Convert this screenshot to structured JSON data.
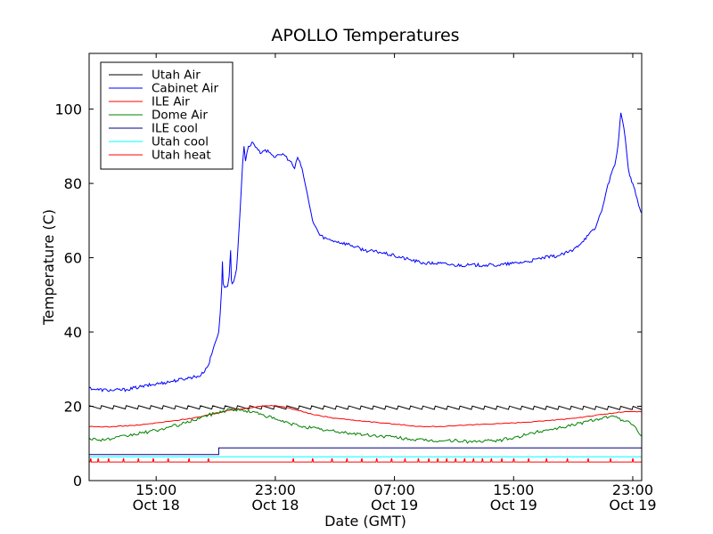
{
  "chart_data": {
    "type": "line",
    "title": "APOLLO Temperatures",
    "xlabel": "Date (GMT)",
    "ylabel": "Temperature (C)",
    "x_unit": "hours since Oct 18 00:00 GMT",
    "xlim": [
      10.5,
      47.6
    ],
    "ylim": [
      0,
      115
    ],
    "yticks": [
      0,
      20,
      40,
      60,
      80,
      100
    ],
    "xticks": [
      {
        "x": 15,
        "line1": "15:00",
        "line2": "Oct 18"
      },
      {
        "x": 23,
        "line1": "23:00",
        "line2": "Oct 18"
      },
      {
        "x": 31,
        "line1": "07:00",
        "line2": "Oct 19"
      },
      {
        "x": 39,
        "line1": "15:00",
        "line2": "Oct 19"
      },
      {
        "x": 47,
        "line1": "23:00",
        "line2": "Oct 19"
      }
    ],
    "legend_position": "top-left",
    "series": [
      {
        "name": "Utah Air",
        "color": "#000000",
        "x": [
          10.5,
          47.6
        ],
        "y": [
          19.8,
          19.6
        ],
        "sawtooth": {
          "period": 0.83,
          "amplitude": 1.0
        }
      },
      {
        "name": "Cabinet Air",
        "color": "#0000ff",
        "x": [
          10.5,
          11.0,
          12.0,
          13.0,
          14.0,
          15.0,
          16.0,
          17.0,
          18.0,
          18.5,
          18.8,
          19.0,
          19.2,
          19.3,
          19.4,
          19.45,
          19.5,
          19.6,
          19.8,
          19.9,
          20.0,
          20.05,
          20.1,
          20.2,
          20.4,
          20.6,
          20.8,
          20.9,
          21.0,
          21.2,
          21.5,
          22.0,
          22.5,
          23.0,
          23.5,
          24.0,
          24.3,
          24.5,
          24.8,
          25.0,
          25.3,
          25.5,
          26.0,
          26.5,
          27.0,
          28.0,
          29.0,
          30.0,
          31.0,
          32.0,
          33.0,
          34.0,
          35.0,
          36.0,
          37.0,
          38.0,
          39.0,
          40.0,
          41.0,
          42.0,
          43.0,
          44.0,
          44.5,
          45.0,
          45.5,
          45.8,
          46.0,
          46.2,
          46.4,
          46.5,
          46.6,
          46.7,
          46.8,
          47.0,
          47.2,
          47.4,
          47.6
        ],
        "y": [
          25.0,
          24.5,
          24.3,
          24.5,
          25.3,
          26.0,
          26.7,
          27.5,
          28.3,
          31.0,
          35.0,
          37.5,
          40.0,
          45.0,
          52.0,
          59.0,
          53.0,
          52.0,
          52.3,
          55.0,
          62.0,
          54.0,
          53.0,
          53.5,
          57.0,
          70.0,
          85.0,
          90.0,
          86.0,
          90.0,
          91.0,
          88.0,
          89.0,
          87.0,
          88.0,
          86.0,
          84.0,
          87.0,
          84.0,
          80.0,
          74.0,
          70.0,
          66.0,
          65.0,
          64.5,
          63.5,
          62.0,
          61.5,
          60.5,
          59.5,
          58.5,
          58.5,
          58.0,
          58.0,
          58.0,
          58.0,
          58.5,
          59.0,
          60.0,
          60.5,
          62.0,
          66.0,
          68.0,
          74.0,
          82.0,
          85.0,
          90.0,
          99.0,
          95.0,
          92.0,
          88.0,
          84.0,
          82.0,
          80.0,
          77.0,
          74.0,
          72.0
        ]
      },
      {
        "name": "ILE Air",
        "color": "#ff0000",
        "x": [
          10.5,
          12.0,
          14.0,
          16.0,
          18.0,
          20.0,
          22.0,
          23.0,
          24.0,
          25.5,
          27.0,
          29.0,
          31.0,
          33.0,
          35.0,
          37.0,
          39.0,
          41.0,
          43.0,
          45.0,
          46.5,
          47.6
        ],
        "y": [
          14.5,
          14.5,
          15.0,
          16.0,
          17.2,
          19.0,
          20.0,
          20.2,
          19.5,
          17.8,
          16.8,
          16.0,
          15.2,
          14.5,
          14.7,
          15.2,
          15.5,
          16.0,
          16.8,
          17.8,
          18.6,
          18.5
        ]
      },
      {
        "name": "Dome Air",
        "color": "#008000",
        "x": [
          10.5,
          11.0,
          12.0,
          13.0,
          14.0,
          15.0,
          16.0,
          17.0,
          18.0,
          19.0,
          20.0,
          21.0,
          22.0,
          23.0,
          24.0,
          25.0,
          26.0,
          27.0,
          28.0,
          29.0,
          30.0,
          31.0,
          32.0,
          33.0,
          34.0,
          35.0,
          36.0,
          37.0,
          38.0,
          39.0,
          40.0,
          41.0,
          42.0,
          43.0,
          44.0,
          44.5,
          45.0,
          45.5,
          46.0,
          46.5,
          47.0,
          47.3,
          47.6
        ],
        "y": [
          11.5,
          11.0,
          11.2,
          12.0,
          12.8,
          13.5,
          14.5,
          15.5,
          17.0,
          18.2,
          19.2,
          18.8,
          18.0,
          16.5,
          15.3,
          14.5,
          13.8,
          13.2,
          12.8,
          12.3,
          12.0,
          11.7,
          11.2,
          10.8,
          10.7,
          10.8,
          10.5,
          10.6,
          10.8,
          11.5,
          12.5,
          13.5,
          14.2,
          15.0,
          16.0,
          16.5,
          17.0,
          17.3,
          16.8,
          16.0,
          15.0,
          13.5,
          12.0
        ]
      },
      {
        "name": "ILE cool",
        "color": "#000080",
        "x": [
          10.5,
          19.2,
          19.2,
          47.6
        ],
        "y": [
          7.0,
          7.0,
          8.8,
          8.8
        ]
      },
      {
        "name": "Utah cool",
        "color": "#00ffff",
        "x": [
          10.5,
          47.6
        ],
        "y": [
          6.4,
          6.4
        ]
      },
      {
        "name": "Utah heat",
        "color": "#ff0000",
        "x": [
          10.5,
          47.6
        ],
        "y": [
          5.0,
          5.0
        ],
        "spikes": {
          "x": [
            10.6,
            11.1,
            11.8,
            12.8,
            13.8,
            14.8,
            15.8,
            17.2,
            18.5,
            24.2,
            25.5,
            26.8,
            27.8,
            28.8,
            29.8,
            30.8,
            31.7,
            32.6,
            33.3,
            33.9,
            34.5,
            35.1,
            35.7,
            36.3,
            36.9,
            37.5,
            38.2,
            39.0,
            40.0,
            41.2,
            42.6,
            44.0,
            45.5,
            47.0
          ],
          "height": 6.0
        }
      }
    ]
  }
}
